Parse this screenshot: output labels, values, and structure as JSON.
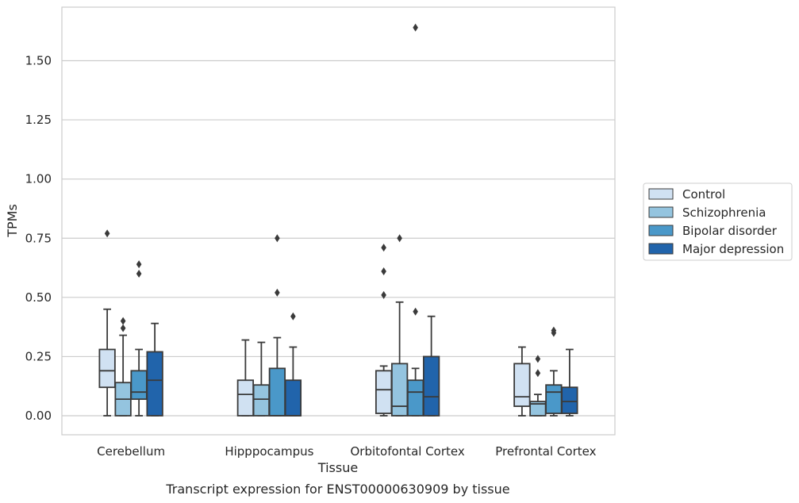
{
  "chart_data": {
    "type": "boxplot",
    "caption": "Transcript expression for ENST00000630909 by tissue",
    "xlabel": "Tissue",
    "ylabel": "TPMs",
    "ylim": [
      -0.08,
      1.73
    ],
    "yticks": [
      0.0,
      0.25,
      0.5,
      0.75,
      1.0,
      1.25,
      1.5
    ],
    "ytick_labels": [
      "0.00",
      "0.25",
      "0.50",
      "0.75",
      "1.00",
      "1.25",
      "1.50"
    ],
    "grid": true,
    "legend_position": "right",
    "categories": [
      "Cerebellum",
      "Hipppocampus",
      "Orbitofontal Cortex",
      "Prefrontal Cortex"
    ],
    "series": [
      {
        "name": "Control",
        "color": "#d0e1f2",
        "boxes": [
          {
            "whisker_low": 0.0,
            "q1": 0.12,
            "median": 0.19,
            "q3": 0.28,
            "whisker_high": 0.45,
            "outliers": [
              0.77
            ]
          },
          {
            "whisker_low": 0.0,
            "q1": 0.0,
            "median": 0.09,
            "q3": 0.15,
            "whisker_high": 0.32,
            "outliers": []
          },
          {
            "whisker_low": 0.0,
            "q1": 0.01,
            "median": 0.11,
            "q3": 0.19,
            "whisker_high": 0.21,
            "outliers": [
              0.51,
              0.61,
              0.71
            ]
          },
          {
            "whisker_low": 0.0,
            "q1": 0.04,
            "median": 0.08,
            "q3": 0.22,
            "whisker_high": 0.29,
            "outliers": []
          }
        ]
      },
      {
        "name": "Schizophrenia",
        "color": "#94c4df",
        "boxes": [
          {
            "whisker_low": 0.0,
            "q1": 0.0,
            "median": 0.07,
            "q3": 0.14,
            "whisker_high": 0.34,
            "outliers": [
              0.37,
              0.4
            ]
          },
          {
            "whisker_low": 0.0,
            "q1": 0.0,
            "median": 0.07,
            "q3": 0.13,
            "whisker_high": 0.31,
            "outliers": []
          },
          {
            "whisker_low": 0.0,
            "q1": 0.0,
            "median": 0.04,
            "q3": 0.22,
            "whisker_high": 0.48,
            "outliers": [
              0.75
            ]
          },
          {
            "whisker_low": 0.0,
            "q1": 0.0,
            "median": 0.05,
            "q3": 0.06,
            "whisker_high": 0.09,
            "outliers": [
              0.18,
              0.24
            ]
          }
        ]
      },
      {
        "name": "Bipolar disorder",
        "color": "#4a98c9",
        "boxes": [
          {
            "whisker_low": 0.0,
            "q1": 0.07,
            "median": 0.1,
            "q3": 0.19,
            "whisker_high": 0.28,
            "outliers": [
              0.6,
              0.64
            ]
          },
          {
            "whisker_low": 0.0,
            "q1": 0.0,
            "median": 0.0,
            "q3": 0.2,
            "whisker_high": 0.33,
            "outliers": [
              0.52,
              0.75
            ]
          },
          {
            "whisker_low": 0.0,
            "q1": 0.0,
            "median": 0.1,
            "q3": 0.15,
            "whisker_high": 0.2,
            "outliers": [
              0.44,
              1.64
            ]
          },
          {
            "whisker_low": 0.0,
            "q1": 0.01,
            "median": 0.1,
            "q3": 0.13,
            "whisker_high": 0.19,
            "outliers": [
              0.35,
              0.36
            ]
          }
        ]
      },
      {
        "name": "Major depression",
        "color": "#2164ab",
        "boxes": [
          {
            "whisker_low": 0.0,
            "q1": 0.0,
            "median": 0.15,
            "q3": 0.27,
            "whisker_high": 0.39,
            "outliers": []
          },
          {
            "whisker_low": 0.0,
            "q1": 0.0,
            "median": 0.0,
            "q3": 0.15,
            "whisker_high": 0.29,
            "outliers": [
              0.42
            ]
          },
          {
            "whisker_low": 0.0,
            "q1": 0.0,
            "median": 0.08,
            "q3": 0.25,
            "whisker_high": 0.42,
            "outliers": []
          },
          {
            "whisker_low": 0.0,
            "q1": 0.01,
            "median": 0.06,
            "q3": 0.12,
            "whisker_high": 0.28,
            "outliers": []
          }
        ]
      }
    ]
  }
}
